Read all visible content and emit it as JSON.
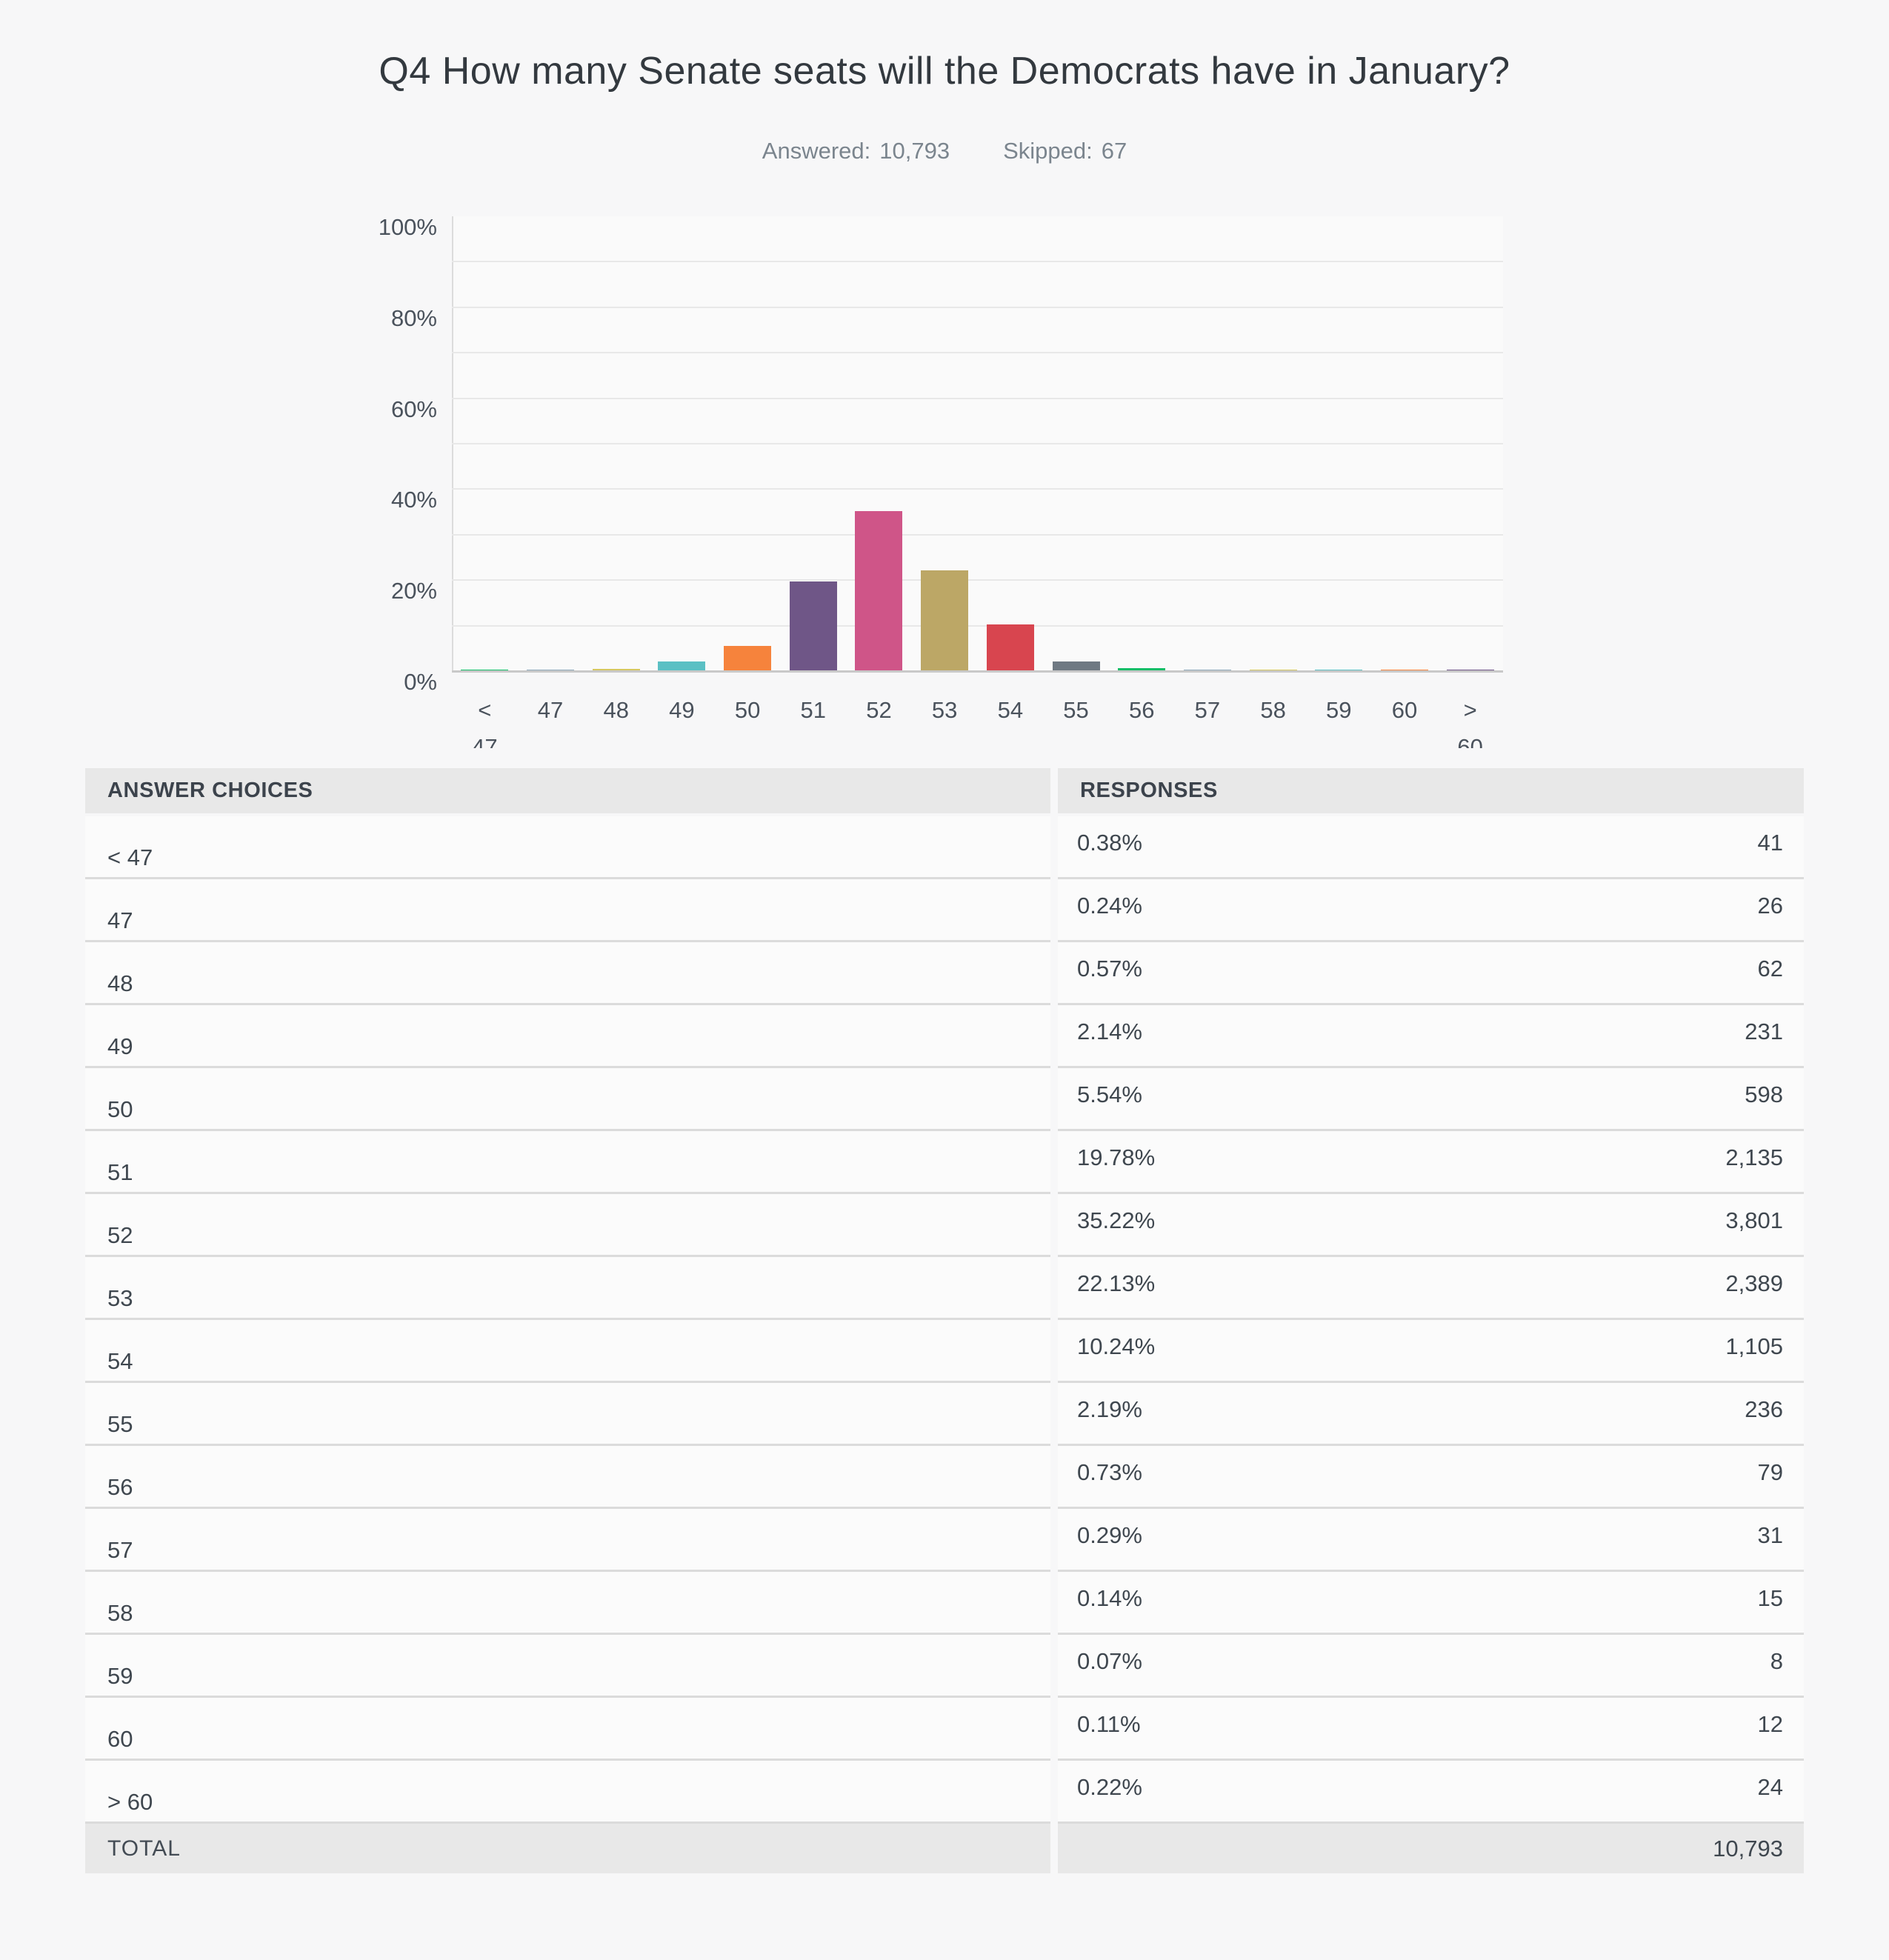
{
  "page": {
    "title": "Q4 How many Senate seats will the Democrats have in January?",
    "stats": {
      "answered_label": "Answered:",
      "answered_value": "10,793",
      "skipped_label": "Skipped:",
      "skipped_value": "67"
    }
  },
  "chart_data": {
    "type": "bar",
    "title": "Q4 How many Senate seats will the Democrats have in January?",
    "categories": [
      "< 47",
      "47",
      "48",
      "49",
      "50",
      "51",
      "52",
      "53",
      "54",
      "55",
      "56",
      "57",
      "58",
      "59",
      "60",
      "> 60"
    ],
    "values": [
      0.38,
      0.24,
      0.57,
      2.14,
      5.54,
      19.78,
      35.22,
      22.13,
      10.24,
      2.19,
      0.73,
      0.29,
      0.14,
      0.07,
      0.11,
      0.22
    ],
    "bar_colors": [
      "#10bd67",
      "#8fa9ba",
      "#d6c75f",
      "#5bc0c4",
      "#f6833c",
      "#6f5687",
      "#cf5588",
      "#bca766",
      "#d8454f",
      "#6f7983",
      "#10bd67",
      "#8fa9ba",
      "#d6c75f",
      "#5bc0c4",
      "#f6833c",
      "#6f5687"
    ],
    "xlabel": "",
    "ylabel": "",
    "ylim": [
      0,
      100
    ],
    "y_ticks": [
      0,
      20,
      40,
      60,
      80,
      100
    ],
    "y_tick_suffix": "%",
    "grid": true,
    "grid_step": 10,
    "legend": false
  },
  "table": {
    "headers": [
      "ANSWER CHOICES",
      "RESPONSES"
    ],
    "rows": [
      {
        "choice": "< 47",
        "percent": "0.38%",
        "count": "41"
      },
      {
        "choice": "47",
        "percent": "0.24%",
        "count": "26"
      },
      {
        "choice": "48",
        "percent": "0.57%",
        "count": "62"
      },
      {
        "choice": "49",
        "percent": "2.14%",
        "count": "231"
      },
      {
        "choice": "50",
        "percent": "5.54%",
        "count": "598"
      },
      {
        "choice": "51",
        "percent": "19.78%",
        "count": "2,135"
      },
      {
        "choice": "52",
        "percent": "35.22%",
        "count": "3,801"
      },
      {
        "choice": "53",
        "percent": "22.13%",
        "count": "2,389"
      },
      {
        "choice": "54",
        "percent": "10.24%",
        "count": "1,105"
      },
      {
        "choice": "55",
        "percent": "2.19%",
        "count": "236"
      },
      {
        "choice": "56",
        "percent": "0.73%",
        "count": "79"
      },
      {
        "choice": "57",
        "percent": "0.29%",
        "count": "31"
      },
      {
        "choice": "58",
        "percent": "0.14%",
        "count": "15"
      },
      {
        "choice": "59",
        "percent": "0.07%",
        "count": "8"
      },
      {
        "choice": "60",
        "percent": "0.11%",
        "count": "12"
      },
      {
        "choice": "> 60",
        "percent": "0.22%",
        "count": "24"
      }
    ],
    "total_label": "TOTAL",
    "total_value": "10,793"
  }
}
